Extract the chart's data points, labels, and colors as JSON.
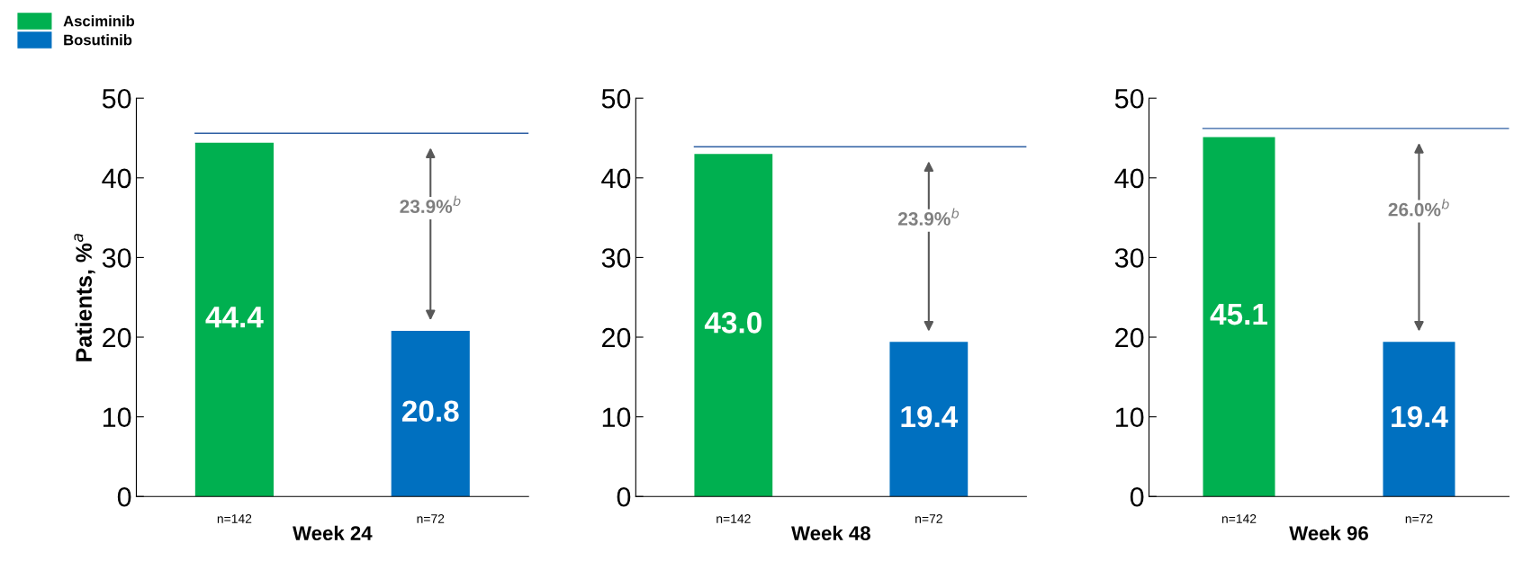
{
  "chart_data": [
    {
      "type": "bar",
      "xlabel": "Week 24",
      "ylabel": "Patients, %$^{a}$",
      "categories": [
        "n=142",
        "n=72"
      ],
      "series": [
        {
          "name": "Asciminib",
          "color": "#00b050",
          "values": [
            44.4,
            null
          ],
          "value_labels": [
            "44.4",
            null
          ]
        },
        {
          "name": "Bosutinib",
          "color": "#0070c0",
          "values": [
            null,
            20.8
          ],
          "value_labels": [
            null,
            "20.8"
          ]
        }
      ],
      "ylim": [
        0,
        50
      ],
      "yticks": [
        0,
        10,
        20,
        30,
        40,
        50
      ],
      "legend": "top left",
      "grid": false,
      "ref_lines": [
        {
          "axis": "y",
          "value": 45.6,
          "color": "#2e5fa3"
        }
      ],
      "annotations": [
        "23.9%$^{b}$"
      ]
    },
    {
      "type": "bar",
      "xlabel": "Week 48",
      "categories": [
        "n=142",
        "n=72"
      ],
      "series": [
        {
          "color": "#00b050",
          "values": [
            43.0,
            null
          ],
          "value_labels": [
            "43.0",
            null
          ]
        },
        {
          "color": "#0070c0",
          "values": [
            null,
            19.4
          ],
          "value_labels": [
            null,
            "19.4"
          ]
        }
      ],
      "ylim": [
        0,
        50
      ],
      "yticks": [
        0,
        10,
        20,
        30,
        40,
        50
      ],
      "grid": false,
      "ref_lines": [
        {
          "axis": "y",
          "value": 43.9,
          "color": "#2e5fa3"
        }
      ],
      "annotations": [
        "23.9%$^{b}$"
      ]
    },
    {
      "type": "bar",
      "xlabel": "Week 96",
      "categories": [
        "n=142",
        "n=72"
      ],
      "series": [
        {
          "color": "#00b050",
          "values": [
            45.1,
            null
          ],
          "value_labels": [
            "45.1",
            null
          ]
        },
        {
          "color": "#0070c0",
          "values": [
            null,
            19.4
          ],
          "value_labels": [
            null,
            "19.4"
          ]
        }
      ],
      "ylim": [
        0,
        50
      ],
      "yticks": [
        0,
        10,
        20,
        30,
        40,
        50
      ],
      "grid": false,
      "ref_lines": [
        {
          "axis": "y",
          "value": 46.2,
          "color": "#2e5fa3"
        }
      ],
      "annotations": [
        "26.0%$^{b}$"
      ]
    }
  ]
}
